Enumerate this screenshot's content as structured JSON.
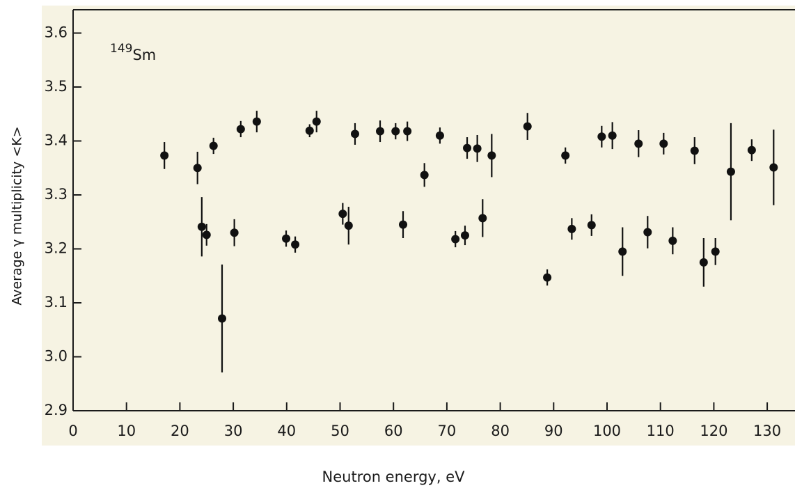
{
  "chart_data": {
    "type": "scatter",
    "x_label": "Neutron energy, eV",
    "y_label": "Average  γ multiplicity <K>",
    "label_mass": "149",
    "label_element": "Sm",
    "xlim": [
      0,
      135
    ],
    "ylim": [
      2.9,
      3.65
    ],
    "xticks": [
      0,
      10,
      20,
      30,
      40,
      50,
      60,
      70,
      80,
      90,
      100,
      110,
      120,
      130
    ],
    "yticks": [
      {
        "value": 2.9,
        "label": "2.9"
      },
      {
        "value": 3,
        "label": "3.0"
      },
      3.1,
      3.2,
      3.3,
      3.4,
      3.5,
      3.6
    ],
    "series": [
      {
        "color": "#111111",
        "x": [
          17.1,
          23.3,
          24.1,
          25,
          26.3,
          27.9,
          30.2,
          31.4,
          34.4,
          39.9,
          41.6,
          44.3,
          45.6,
          50.5,
          51.6,
          52.8,
          57.5,
          60.4,
          62.6,
          61.8,
          65.8,
          68.7,
          71.6,
          73.4,
          73.8,
          75.7,
          76.7,
          78.4,
          85.1,
          88.8,
          92.2,
          93.4,
          97.1,
          99,
          101,
          102.9,
          105.9,
          107.6,
          110.6,
          112.3,
          116.4,
          118.1,
          120.3,
          123.2,
          127.1,
          131.2
        ],
        "values": [
          3.373,
          3.35,
          3.241,
          3.226,
          3.391,
          3.071,
          3.23,
          3.422,
          3.436,
          3.219,
          3.208,
          3.419,
          3.436,
          3.265,
          3.243,
          3.413,
          3.418,
          3.418,
          3.418,
          3.245,
          3.337,
          3.41,
          3.218,
          3.225,
          3.387,
          3.386,
          3.257,
          3.373,
          3.427,
          3.147,
          3.373,
          3.237,
          3.244,
          3.408,
          3.41,
          3.195,
          3.395,
          3.231,
          3.395,
          3.215,
          3.382,
          3.175,
          3.195,
          3.343,
          3.383,
          3.351
        ],
        "errors": [
          0.025,
          0.03,
          0.055,
          0.02,
          0.015,
          0.1,
          0.025,
          0.015,
          0.02,
          0.015,
          0.015,
          0.012,
          0.02,
          0.02,
          0.035,
          0.02,
          0.02,
          0.015,
          0.018,
          0.025,
          0.022,
          0.015,
          0.015,
          0.018,
          0.02,
          0.025,
          0.035,
          0.04,
          0.025,
          0.015,
          0.015,
          0.02,
          0.02,
          0.02,
          0.025,
          0.045,
          0.025,
          0.03,
          0.02,
          0.025,
          0.025,
          0.045,
          0.025,
          0.09,
          0.02,
          0.07
        ]
      }
    ]
  }
}
